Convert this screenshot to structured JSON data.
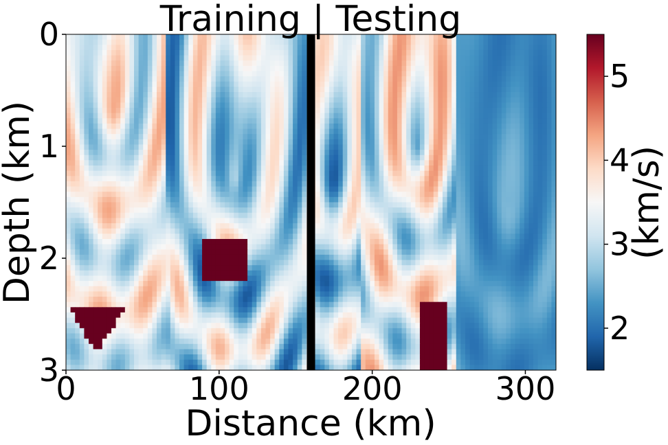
{
  "chart_data": {
    "type": "heatmap",
    "title": "Training |  Testing",
    "xlabel": "Distance (km)",
    "ylabel": "Depth (km)",
    "xlim": [
      0,
      320
    ],
    "ylim": [
      3,
      0
    ],
    "x_ticks": [
      0,
      100,
      200,
      300
    ],
    "y_ticks": [
      0,
      1,
      2,
      3
    ],
    "colorbar": {
      "label": "(km/s)",
      "range": [
        1.5,
        5.5
      ],
      "ticks": [
        2,
        3,
        4,
        5
      ],
      "colormap": [
        "#053061",
        "#2166ac",
        "#4393c3",
        "#92c5de",
        "#d1e5f0",
        "#f7f7f7",
        "#fddbc7",
        "#f4a582",
        "#d6604d",
        "#b2182b",
        "#67001f"
      ]
    },
    "divider_x": 160,
    "divider_color": "#000000",
    "segments": [
      {
        "x_range": [
          0,
          64
        ],
        "note_values": [
          2.5,
          4.3,
          5.5
        ]
      },
      {
        "x_range": [
          64,
          160
        ],
        "note_values": [
          1.8,
          4.2,
          5.5
        ]
      },
      {
        "x_range": [
          160,
          192
        ],
        "note_values": [
          1.8,
          4.0,
          5.5
        ]
      },
      {
        "x_range": [
          192,
          256
        ],
        "note_values": [
          2.3,
          4.4,
          5.5
        ]
      },
      {
        "x_range": [
          256,
          320
        ],
        "note_values": [
          2.0,
          2.6,
          3.8
        ]
      }
    ],
    "grid": false,
    "legend": "colorbar-right"
  }
}
